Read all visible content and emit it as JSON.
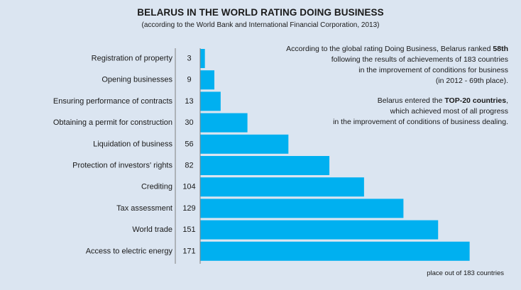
{
  "title": "BELARUS IN THE WORLD RATING DOING BUSINESS",
  "subtitle": "(according to the World Bank and International Financial Corporation, 2013)",
  "note1": {
    "pre": "According to the global rating Doing Business, Belarus ranked ",
    "bold": "58th",
    "line2": "following the results of achievements of 183 countries",
    "line3": "in the improvement of conditions for business",
    "line4": "(in 2012 - 69th place)."
  },
  "note2": {
    "pre": "Belarus entered the ",
    "bold": "TOP-20 countries",
    "post": ",",
    "line2": "which achieved most of all progress",
    "line3": "in the improvement of conditions of business dealing."
  },
  "footer": "place out of 183 countries",
  "colors": {
    "bar": "#00b0f0",
    "background": "#dbe5f1",
    "axis": "#7f7f7f"
  },
  "chart_data": {
    "type": "bar",
    "orientation": "horizontal",
    "categories": [
      "Registration of property",
      "Opening businesses",
      "Ensuring performance of contracts",
      "Obtaining a permit for construction",
      "Liquidation of business",
      "Protection of investors' rights",
      "Crediting",
      "Tax assessment",
      "World trade",
      "Access to electric energy"
    ],
    "values": [
      3,
      9,
      13,
      30,
      56,
      82,
      104,
      129,
      151,
      171
    ],
    "xlabel": "place out of 183 countries",
    "xlim": [
      0,
      183
    ],
    "grid": false,
    "legend": "none"
  }
}
